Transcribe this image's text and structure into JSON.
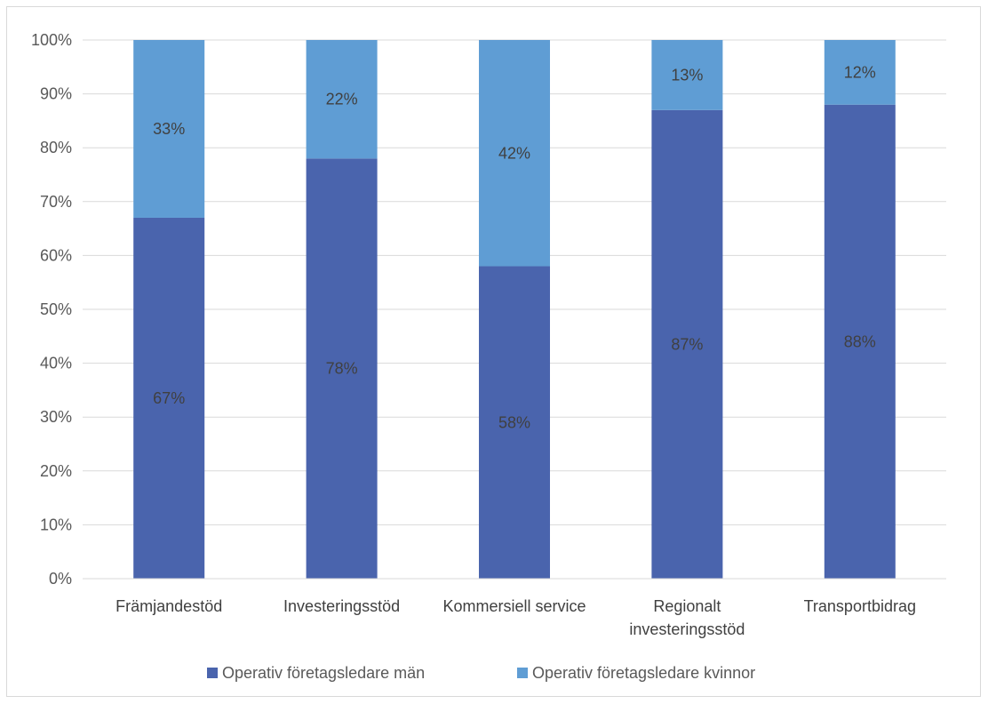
{
  "chart_data": {
    "type": "bar",
    "stacked": "percent",
    "categories": [
      [
        "Främjandestöd"
      ],
      [
        "Investeringsstöd"
      ],
      [
        "Kommersiell service"
      ],
      [
        "Regionalt",
        "investeringsstöd"
      ],
      [
        "Transportbidrag"
      ]
    ],
    "series": [
      {
        "name": "Operativ företagsledare män",
        "color": "#4a64ad",
        "values": [
          67,
          78,
          58,
          87,
          88
        ],
        "labels": [
          "67%",
          "78%",
          "58%",
          "87%",
          "88%"
        ]
      },
      {
        "name": "Operativ företagsledare kvinnor",
        "color": "#5f9dd4",
        "values": [
          33,
          22,
          42,
          13,
          12
        ],
        "labels": [
          "33%",
          "22%",
          "42%",
          "13%",
          "12%"
        ]
      }
    ],
    "ylim": [
      0,
      100
    ],
    "yticks": [
      "0%",
      "10%",
      "20%",
      "30%",
      "40%",
      "50%",
      "60%",
      "70%",
      "80%",
      "90%",
      "100%"
    ],
    "grid": true,
    "legend": "bottom",
    "title": "",
    "xlabel": "",
    "ylabel": ""
  }
}
